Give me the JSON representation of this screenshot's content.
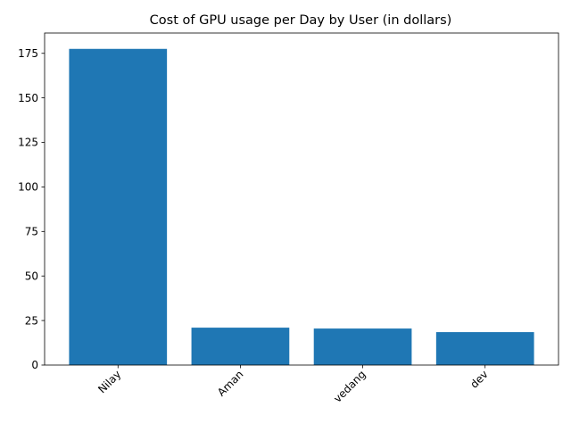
{
  "chart_data": {
    "type": "bar",
    "title": "Cost of GPU usage per Day by User (in dollars)",
    "xlabel": "",
    "ylabel": "",
    "categories": [
      "Nilay",
      "Aman",
      "vedang",
      "dev"
    ],
    "values": [
      177.5,
      21.0,
      20.5,
      18.5
    ],
    "ylim": [
      0,
      186.4
    ],
    "yticks": [
      0,
      25,
      50,
      75,
      100,
      125,
      150,
      175
    ],
    "ytick_labels": [
      "0",
      "25",
      "50",
      "75",
      "100",
      "125",
      "150",
      "175"
    ],
    "xtick_rotation_deg": 45,
    "grid": false,
    "legend": "none",
    "bar_color": "#1f77b4"
  }
}
